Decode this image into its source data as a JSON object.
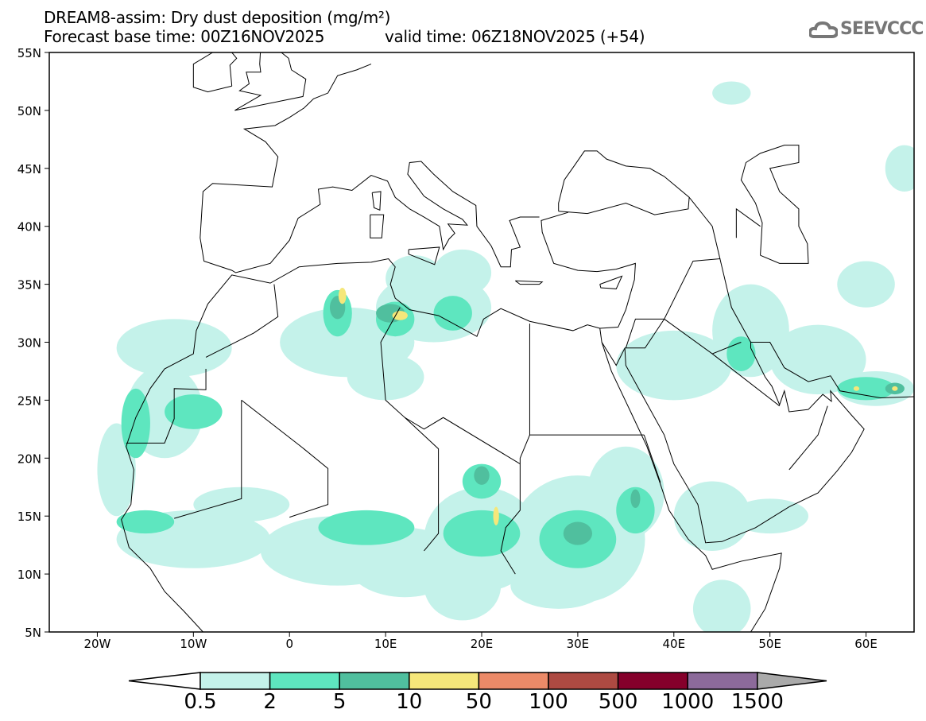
{
  "header": {
    "title": "DREAM8-assim: Dry dust deposition (mg/m²)",
    "base_time": "Forecast base time: 00Z16NOV2025",
    "valid_time": "valid time: 06Z18NOV2025 (+54)",
    "logo_text": "SEEVCCC"
  },
  "chart_data": {
    "type": "heatmap",
    "title": "DREAM8-assim: Dry dust deposition (mg/m²)",
    "units": "mg/m²",
    "lon_range": [
      -25,
      65
    ],
    "lat_range": [
      5,
      55
    ],
    "lat_ticks": [
      "55N",
      "50N",
      "45N",
      "40N",
      "35N",
      "30N",
      "25N",
      "20N",
      "15N",
      "10N",
      "5N"
    ],
    "lat_values": [
      55,
      50,
      45,
      40,
      35,
      30,
      25,
      20,
      15,
      10,
      5
    ],
    "lon_ticks": [
      "20W",
      "10W",
      "0",
      "10E",
      "20E",
      "30E",
      "40E",
      "50E",
      "60E"
    ],
    "lon_values": [
      -20,
      -10,
      0,
      10,
      20,
      30,
      40,
      50,
      60
    ],
    "colorbar": {
      "labels": [
        "0.5",
        "2",
        "5",
        "10",
        "50",
        "100",
        "500",
        "1000",
        "1500"
      ],
      "colors": [
        "#c4f2ea",
        "#5ee6bf",
        "#50bf9e",
        "#f5e77a",
        "#ec8a68",
        "#ad4a42",
        "#85002b",
        "#8c6a9a"
      ],
      "over_color": "#aaaaaa"
    },
    "dust_regions": [
      {
        "level": 0,
        "lon": -13,
        "lat": 24,
        "rlon": 4,
        "rlat": 4
      },
      {
        "level": 0,
        "lon": -18,
        "lat": 19,
        "rlon": 2,
        "rlat": 4
      },
      {
        "level": 0,
        "lon": -12,
        "lat": 29.5,
        "rlon": 6,
        "rlat": 2.5
      },
      {
        "level": 0,
        "lon": -10,
        "lat": 13,
        "rlon": 8,
        "rlat": 2.5
      },
      {
        "level": 0,
        "lon": -5,
        "lat": 16,
        "rlon": 5,
        "rlat": 1.5
      },
      {
        "level": 0,
        "lon": 5,
        "lat": 12,
        "rlon": 8,
        "rlat": 3
      },
      {
        "level": 0,
        "lon": 12,
        "lat": 11,
        "rlon": 6,
        "rlat": 3
      },
      {
        "level": 0,
        "lon": 20,
        "lat": 13,
        "rlon": 6,
        "rlat": 4.5
      },
      {
        "level": 0,
        "lon": 30,
        "lat": 13,
        "rlon": 7,
        "rlat": 5.5
      },
      {
        "level": 0,
        "lon": 35,
        "lat": 17,
        "rlon": 4,
        "rlat": 4
      },
      {
        "level": 0,
        "lon": 18,
        "lat": 9,
        "rlon": 4,
        "rlat": 3
      },
      {
        "level": 0,
        "lon": 28,
        "lat": 9,
        "rlon": 5,
        "rlat": 2
      },
      {
        "level": 0,
        "lon": 6,
        "lat": 30,
        "rlon": 7,
        "rlat": 3
      },
      {
        "level": 0,
        "lon": 15,
        "lat": 33,
        "rlon": 6,
        "rlat": 3
      },
      {
        "level": 0,
        "lon": 13,
        "lat": 35.5,
        "rlon": 3,
        "rlat": 2
      },
      {
        "level": 0,
        "lon": 10,
        "lat": 27,
        "rlon": 4,
        "rlat": 2
      },
      {
        "level": 0,
        "lon": 40,
        "lat": 28,
        "rlon": 6,
        "rlat": 3
      },
      {
        "level": 0,
        "lon": 48,
        "lat": 31,
        "rlon": 4,
        "rlat": 4
      },
      {
        "level": 0,
        "lon": 55,
        "lat": 28.5,
        "rlon": 5,
        "rlat": 3
      },
      {
        "level": 0,
        "lon": 61,
        "lat": 26,
        "rlon": 4,
        "rlat": 1.5
      },
      {
        "level": 0,
        "lon": 44,
        "lat": 15,
        "rlon": 4,
        "rlat": 3
      },
      {
        "level": 0,
        "lon": 50,
        "lat": 15,
        "rlon": 4,
        "rlat": 1.5
      },
      {
        "level": 0,
        "lon": 45,
        "lat": 7,
        "rlon": 3,
        "rlat": 2.5
      },
      {
        "level": 0,
        "lon": 60,
        "lat": 35,
        "rlon": 3,
        "rlat": 2
      },
      {
        "level": 0,
        "lon": 64,
        "lat": 45,
        "rlon": 2,
        "rlat": 2
      },
      {
        "level": 0,
        "lon": 46,
        "lat": 51.5,
        "rlon": 2,
        "rlat": 1
      },
      {
        "level": 0,
        "lon": 18,
        "lat": 36,
        "rlon": 3,
        "rlat": 2
      },
      {
        "level": 1,
        "lon": -16,
        "lat": 23,
        "rlon": 1.5,
        "rlat": 3
      },
      {
        "level": 1,
        "lon": -10,
        "lat": 24,
        "rlon": 3,
        "rlat": 1.5
      },
      {
        "level": 1,
        "lon": 5,
        "lat": 32.5,
        "rlon": 1.5,
        "rlat": 2
      },
      {
        "level": 1,
        "lon": 11,
        "lat": 32,
        "rlon": 2,
        "rlat": 1.5
      },
      {
        "level": 1,
        "lon": 17,
        "lat": 32.5,
        "rlon": 2,
        "rlat": 1.5
      },
      {
        "level": 1,
        "lon": 8,
        "lat": 14,
        "rlon": 5,
        "rlat": 1.5
      },
      {
        "level": 1,
        "lon": 20,
        "lat": 13.5,
        "rlon": 4,
        "rlat": 2
      },
      {
        "level": 1,
        "lon": 20,
        "lat": 18,
        "rlon": 2,
        "rlat": 1.5
      },
      {
        "level": 1,
        "lon": 30,
        "lat": 13,
        "rlon": 4,
        "rlat": 2.5
      },
      {
        "level": 1,
        "lon": 36,
        "lat": 15.5,
        "rlon": 2,
        "rlat": 2
      },
      {
        "level": 1,
        "lon": -15,
        "lat": 14.5,
        "rlon": 3,
        "rlat": 1
      },
      {
        "level": 1,
        "lon": 47,
        "lat": 29,
        "rlon": 1.5,
        "rlat": 1.5
      },
      {
        "level": 1,
        "lon": 60,
        "lat": 26,
        "rlon": 3,
        "rlat": 1
      },
      {
        "level": 2,
        "lon": 5,
        "lat": 33,
        "rlon": 0.8,
        "rlat": 1
      },
      {
        "level": 2,
        "lon": 10.5,
        "lat": 32.5,
        "rlon": 1.5,
        "rlat": 0.8
      },
      {
        "level": 2,
        "lon": 20,
        "lat": 18.5,
        "rlon": 0.8,
        "rlat": 0.8
      },
      {
        "level": 2,
        "lon": 30,
        "lat": 13.5,
        "rlon": 1.5,
        "rlat": 1
      },
      {
        "level": 2,
        "lon": 36,
        "lat": 16.5,
        "rlon": 0.5,
        "rlat": 0.8
      },
      {
        "level": 2,
        "lon": 63,
        "lat": 26,
        "rlon": 1,
        "rlat": 0.5
      },
      {
        "level": 3,
        "lon": 5.5,
        "lat": 34,
        "rlon": 0.4,
        "rlat": 0.7
      },
      {
        "level": 3,
        "lon": 11.5,
        "lat": 32.3,
        "rlon": 0.8,
        "rlat": 0.4
      },
      {
        "level": 3,
        "lon": 21.5,
        "lat": 15,
        "rlon": 0.3,
        "rlat": 0.8
      },
      {
        "level": 3,
        "lon": 59,
        "lat": 26,
        "rlon": 0.3,
        "rlat": 0.2
      },
      {
        "level": 3,
        "lon": 63,
        "lat": 26,
        "rlon": 0.3,
        "rlat": 0.2
      }
    ]
  }
}
